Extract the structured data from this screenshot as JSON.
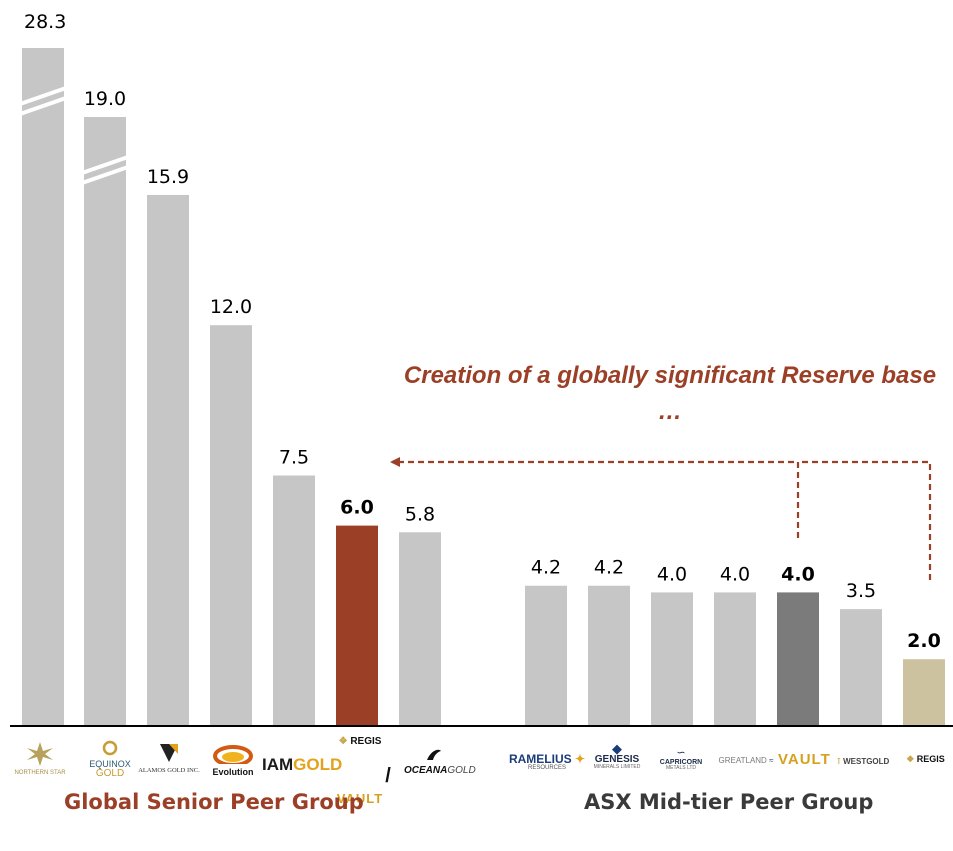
{
  "colors": {
    "bar_default": "#c6c6c6",
    "bar_regis_global": "#9b3f26",
    "bar_vault": "#7b7b7b",
    "bar_regis_asx": "#cdc2a0",
    "accent_text": "#9b3f26",
    "label_text": "#000000",
    "asx_group_text": "#3a3a3a"
  },
  "annotation": {
    "text": "Creation of a globally significant Reserve base …"
  },
  "chart_data": {
    "type": "bar",
    "title": "",
    "xlabel": "",
    "ylabel": "",
    "ylim": [
      0,
      16
    ],
    "axis_break": true,
    "grid": false,
    "groups": [
      {
        "name": "Global Senior Peer Group",
        "start": 0,
        "end": 6
      },
      {
        "name": "ASX Mid-tier Peer Group",
        "start": 7,
        "end": 13
      }
    ],
    "categories": [
      "Northern Star",
      "Equinox Gold",
      "Alamos Gold Inc.",
      "Evolution",
      "IAMGOLD",
      "Regis / Vault",
      "OceanaGold",
      "Ramelius Resources",
      "Genesis Minerals",
      "Capricorn Metals",
      "Greatland",
      "Vault",
      "Westgold",
      "Regis"
    ],
    "values": [
      28.3,
      19.0,
      15.9,
      12.0,
      7.5,
      6.0,
      5.8,
      4.2,
      4.2,
      4.0,
      4.0,
      4.0,
      3.5,
      2.0
    ],
    "labels": [
      "28.3",
      "19.0",
      "15.9",
      "12.0",
      "7.5",
      "6.0",
      "5.8",
      "4.2",
      "4.2",
      "4.0",
      "4.0",
      "4.0",
      "3.5",
      "2.0"
    ],
    "broken": [
      true,
      true,
      false,
      false,
      false,
      false,
      false,
      false,
      false,
      false,
      false,
      false,
      false,
      false
    ],
    "bold": [
      false,
      false,
      false,
      false,
      false,
      true,
      false,
      false,
      false,
      false,
      false,
      true,
      false,
      true
    ],
    "color_keys": [
      "bar_default",
      "bar_default",
      "bar_default",
      "bar_default",
      "bar_default",
      "bar_regis_global",
      "bar_default",
      "bar_default",
      "bar_default",
      "bar_default",
      "bar_default",
      "bar_vault",
      "bar_default",
      "bar_regis_asx"
    ]
  },
  "logos": {
    "northern_star": "NORTHERN STAR",
    "equinox_1": "EQUINOX",
    "equinox_2": "GOLD",
    "alamos": "ALAMOS GOLD INC.",
    "evolution": "Evolution",
    "iam_1": "IAM",
    "iam_2": "GOLD",
    "regis_global": "REGIS",
    "slash": "/",
    "vault_global": "VAULT",
    "oceana_1": "OCEANA",
    "oceana_2": "GOLD",
    "ramelius_1": "RAMELIUS",
    "ramelius_2": "RESOURCES",
    "genesis_1": "GENESIS",
    "genesis_2": "MINERALS LIMITED",
    "capricorn_1": "CAPRICORN",
    "capricorn_2": "METALS LTD",
    "greatland": "GREATLAND",
    "vault_asx": "VAULT",
    "westgold": "WESTGOLD",
    "regis_asx": "REGIS"
  },
  "groups": {
    "global": "Global Senior Peer Group",
    "asx": "ASX Mid-tier Peer Group"
  }
}
